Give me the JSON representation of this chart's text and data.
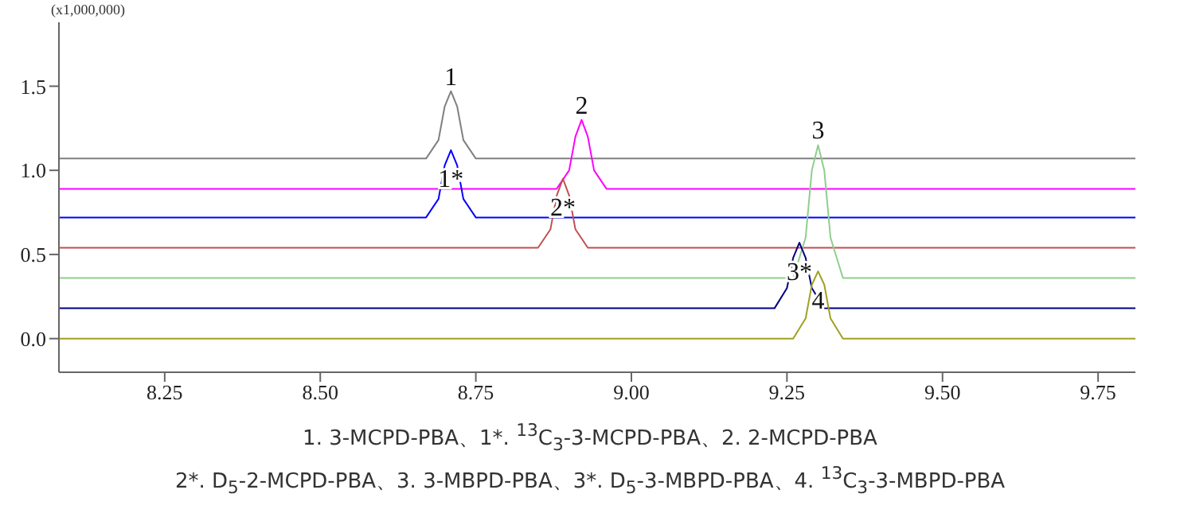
{
  "chart_data": {
    "type": "line",
    "ylabel": "(x1,000,000)",
    "xlim": [
      8.08,
      9.81
    ],
    "xticks": [
      8.25,
      {
        "value": 8.5,
        "label": "8.50"
      },
      8.75,
      {
        "value": 9,
        "label": "9.00"
      },
      9.25,
      {
        "value": 9.5,
        "label": "9.50"
      },
      9.75
    ],
    "ylim": [
      -0.2,
      1.88
    ],
    "yticks": [
      {
        "value": 0,
        "label": "0.0"
      },
      0.5,
      {
        "value": 1,
        "label": "1.0"
      },
      1.5
    ],
    "grid": false,
    "legend": false,
    "marker": "none",
    "line_style": "solid",
    "series": [
      {
        "color": "#808080",
        "x": [
          8.08,
          8.67,
          8.69,
          8.7,
          8.71,
          8.72,
          8.73,
          8.75,
          9.81
        ],
        "values": [
          1.07,
          1.07,
          1.18,
          1.38,
          1.47,
          1.38,
          1.18,
          1.07,
          1.07
        ]
      },
      {
        "color": "#ff00ff",
        "x": [
          8.08,
          8.88,
          8.9,
          8.91,
          8.92,
          8.93,
          8.94,
          8.96,
          9.81
        ],
        "values": [
          0.89,
          0.89,
          1.0,
          1.2,
          1.3,
          1.2,
          1.0,
          0.89,
          0.89
        ]
      },
      {
        "color": "#0000ff",
        "x": [
          8.08,
          8.67,
          8.69,
          8.7,
          8.71,
          8.72,
          8.73,
          8.75,
          9.81
        ],
        "values": [
          0.72,
          0.72,
          0.83,
          1.03,
          1.12,
          1.03,
          0.83,
          0.72,
          0.72
        ]
      },
      {
        "color": "#c05050",
        "x": [
          8.08,
          8.85,
          8.87,
          8.88,
          8.89,
          8.9,
          8.91,
          8.93,
          9.81
        ],
        "values": [
          0.54,
          0.54,
          0.65,
          0.85,
          0.95,
          0.85,
          0.65,
          0.54,
          0.54
        ]
      },
      {
        "color": "#8fce8f",
        "x": [
          8.08,
          9.26,
          9.28,
          9.29,
          9.3,
          9.31,
          9.32,
          9.34,
          9.81
        ],
        "values": [
          0.36,
          0.36,
          0.6,
          1.0,
          1.15,
          1.0,
          0.6,
          0.36,
          0.36
        ]
      },
      {
        "color": "#000080",
        "x": [
          8.08,
          9.23,
          9.25,
          9.26,
          9.27,
          9.28,
          9.29,
          9.31,
          9.81
        ],
        "values": [
          0.18,
          0.18,
          0.3,
          0.48,
          0.57,
          0.48,
          0.3,
          0.18,
          0.18
        ]
      },
      {
        "color": "#a0a020",
        "x": [
          8.08,
          9.26,
          9.28,
          9.29,
          9.3,
          9.31,
          9.32,
          9.34,
          9.81
        ],
        "values": [
          0,
          0,
          0.12,
          0.32,
          0.4,
          0.32,
          0.12,
          0,
          0
        ]
      }
    ],
    "annotations": [
      {
        "text": "1",
        "x": 8.71,
        "y": 1.47
      },
      {
        "text": "1*",
        "x": 8.71,
        "y": 1.12
      },
      {
        "text": "2",
        "x": 8.92,
        "y": 1.3
      },
      {
        "text": "2*",
        "x": 8.89,
        "y": 0.95
      },
      {
        "text": "3",
        "x": 9.3,
        "y": 1.15
      },
      {
        "text": "3*",
        "x": 9.27,
        "y": 0.57
      },
      {
        "text": "4",
        "x": 9.3,
        "y": 0.4
      },
      "1. 3-MCPD-PBA、1*. $^{13}$C$_{3}$-3-MCPD-PBA、2. 2-MCPD-PBA",
      "2*. D$_{5}$-2-MCPD-PBA、3. 3-MBPD-PBA、3*. D$_{5}$-3-MBPD-PBA、4. $^{13}$C$_{3}$-3-MBPD-PBA"
    ]
  }
}
